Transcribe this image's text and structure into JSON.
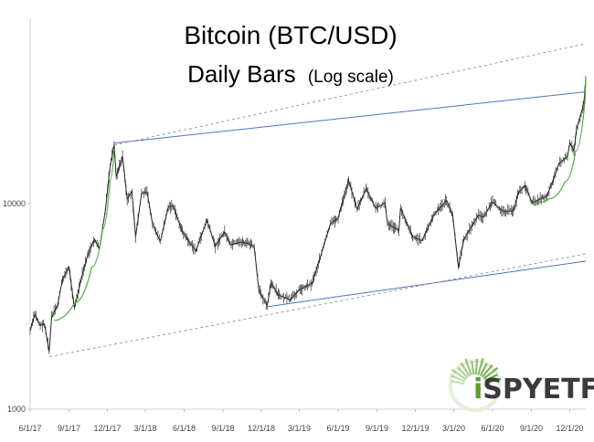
{
  "chart_data": {
    "type": "line",
    "title": "Bitcoin (BTC/USD)",
    "subtitle": "Daily Bars",
    "subtitle_note": "(Log scale)",
    "y_scale": "log",
    "ylim": [
      1000,
      30000
    ],
    "x_range": [
      "2017-06-01",
      "2021-01-08"
    ],
    "y_ticks": [
      {
        "value": 10000,
        "label": "10000"
      },
      {
        "value": 1000,
        "label": "1000"
      }
    ],
    "x_ticks": [
      {
        "date": "2017-06-01",
        "label": "6/1/17"
      },
      {
        "date": "2017-09-01",
        "label": "9/1/17"
      },
      {
        "date": "2017-12-01",
        "label": "12/1/17"
      },
      {
        "date": "2018-03-01",
        "label": "3/1/18"
      },
      {
        "date": "2018-06-01",
        "label": "6/1/18"
      },
      {
        "date": "2018-09-01",
        "label": "9/1/18"
      },
      {
        "date": "2018-12-01",
        "label": "12/1/18"
      },
      {
        "date": "2019-03-01",
        "label": "3/1/19"
      },
      {
        "date": "2019-06-01",
        "label": "6/1/19"
      },
      {
        "date": "2019-09-01",
        "label": "9/1/19"
      },
      {
        "date": "2019-12-01",
        "label": "12/1/19"
      },
      {
        "date": "2020-03-01",
        "label": "3/1/20"
      },
      {
        "date": "2020-06-01",
        "label": "6/1/20"
      },
      {
        "date": "2020-09-01",
        "label": "9/1/20"
      },
      {
        "date": "2020-12-01",
        "label": "12/1/20"
      }
    ],
    "series": [
      {
        "points": [
          [
            "2017-06-01",
            2400
          ],
          [
            "2017-06-12",
            2900
          ],
          [
            "2017-06-25",
            2550
          ],
          [
            "2017-07-05",
            2600
          ],
          [
            "2017-07-16",
            1900
          ],
          [
            "2017-07-22",
            2800
          ],
          [
            "2017-08-05",
            3200
          ],
          [
            "2017-08-17",
            4300
          ],
          [
            "2017-09-01",
            4900
          ],
          [
            "2017-09-14",
            3100
          ],
          [
            "2017-09-30",
            4300
          ],
          [
            "2017-10-15",
            5600
          ],
          [
            "2017-11-01",
            6700
          ],
          [
            "2017-11-12",
            6000
          ],
          [
            "2017-11-26",
            9200
          ],
          [
            "2017-12-07",
            15000
          ],
          [
            "2017-12-17",
            19300
          ],
          [
            "2017-12-22",
            13500
          ],
          [
            "2018-01-06",
            17000
          ],
          [
            "2018-01-17",
            10500
          ],
          [
            "2018-01-28",
            11500
          ],
          [
            "2018-02-06",
            6900
          ],
          [
            "2018-02-20",
            11200
          ],
          [
            "2018-03-05",
            11400
          ],
          [
            "2018-03-18",
            8000
          ],
          [
            "2018-03-31",
            6900
          ],
          [
            "2018-04-06",
            6600
          ],
          [
            "2018-04-24",
            9600
          ],
          [
            "2018-05-05",
            9800
          ],
          [
            "2018-05-28",
            7300
          ],
          [
            "2018-06-15",
            6400
          ],
          [
            "2018-06-29",
            5900
          ],
          [
            "2018-07-25",
            8300
          ],
          [
            "2018-08-14",
            6200
          ],
          [
            "2018-09-05",
            7300
          ],
          [
            "2018-09-18",
            6300
          ],
          [
            "2018-10-15",
            6500
          ],
          [
            "2018-11-01",
            6400
          ],
          [
            "2018-11-14",
            6200
          ],
          [
            "2018-11-25",
            3800
          ],
          [
            "2018-12-15",
            3200
          ],
          [
            "2018-12-24",
            4100
          ],
          [
            "2019-01-10",
            3600
          ],
          [
            "2019-02-07",
            3400
          ],
          [
            "2019-02-28",
            3800
          ],
          [
            "2019-03-31",
            4100
          ],
          [
            "2019-04-15",
            5100
          ],
          [
            "2019-05-14",
            8000
          ],
          [
            "2019-06-01",
            8500
          ],
          [
            "2019-06-26",
            13000
          ],
          [
            "2019-07-16",
            9400
          ],
          [
            "2019-08-06",
            11800
          ],
          [
            "2019-08-29",
            9500
          ],
          [
            "2019-09-20",
            10100
          ],
          [
            "2019-09-26",
            8000
          ],
          [
            "2019-10-23",
            7400
          ],
          [
            "2019-10-27",
            9500
          ],
          [
            "2019-11-25",
            6900
          ],
          [
            "2019-12-17",
            6600
          ],
          [
            "2020-01-14",
            8800
          ],
          [
            "2020-02-13",
            10400
          ],
          [
            "2020-02-28",
            8600
          ],
          [
            "2020-03-12",
            4900
          ],
          [
            "2020-03-25",
            6700
          ],
          [
            "2020-04-29",
            8800
          ],
          [
            "2020-05-10",
            8600
          ],
          [
            "2020-06-01",
            10200
          ],
          [
            "2020-06-25",
            9200
          ],
          [
            "2020-07-20",
            9200
          ],
          [
            "2020-08-02",
            11400
          ],
          [
            "2020-08-17",
            12200
          ],
          [
            "2020-09-03",
            10100
          ],
          [
            "2020-10-08",
            10900
          ],
          [
            "2020-10-21",
            12800
          ],
          [
            "2020-11-05",
            15600
          ],
          [
            "2020-11-26",
            17000
          ],
          [
            "2020-12-01",
            19700
          ],
          [
            "2020-12-11",
            18000
          ],
          [
            "2020-12-17",
            23000
          ],
          [
            "2020-12-31",
            29000
          ],
          [
            "2021-01-04",
            31500
          ],
          [
            "2021-01-08",
            41000
          ]
        ]
      }
    ],
    "trendlines": [
      {
        "style": "solid",
        "color": "#4f73c2",
        "points": [
          [
            "2017-12-17",
            19700
          ],
          [
            "2021-01-08",
            35000
          ]
        ]
      },
      {
        "style": "solid",
        "color": "#4f73c2",
        "points": [
          [
            "2018-12-15",
            3150
          ],
          [
            "2021-01-08",
            5250
          ]
        ]
      },
      {
        "style": "dashed",
        "color": "#9a9a9a",
        "points": [
          [
            "2017-07-17",
            1800
          ],
          [
            "2021-01-08",
            5700
          ]
        ]
      },
      {
        "style": "dashed",
        "color": "#9a9a9a",
        "points": [
          [
            "2017-12-17",
            19300
          ],
          [
            "2021-01-08",
            60000
          ]
        ]
      }
    ],
    "curves": [
      {
        "color": "#4cae3c",
        "points": [
          [
            "2017-07-28",
            2700
          ],
          [
            "2017-09-15",
            3300
          ],
          [
            "2017-10-25",
            4900
          ],
          [
            "2017-11-20",
            7500
          ],
          [
            "2017-12-07",
            13000
          ],
          [
            "2017-12-17",
            18500
          ]
        ]
      },
      {
        "color": "#4cae3c",
        "points": [
          [
            "2020-09-05",
            10000
          ],
          [
            "2020-10-15",
            10600
          ],
          [
            "2020-11-20",
            12800
          ],
          [
            "2020-12-15",
            18000
          ],
          [
            "2021-01-05",
            30000
          ],
          [
            "2021-01-08",
            42000
          ]
        ]
      }
    ],
    "grid": false
  },
  "logo": {
    "text_left": "i",
    "text_right": "SPYETF",
    "brand_color": "#5aa02c"
  }
}
